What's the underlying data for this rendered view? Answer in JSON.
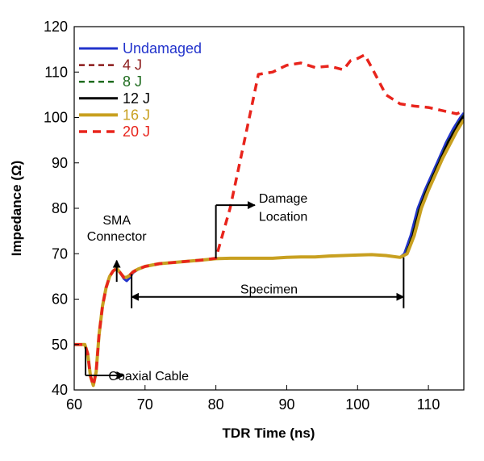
{
  "chart_data": {
    "type": "line",
    "xlabel": "TDR Time (ns)",
    "ylabel": "Impedance (Ω)",
    "xlim": [
      60,
      115
    ],
    "ylim": [
      40,
      120
    ],
    "xticks": [
      60,
      70,
      80,
      90,
      100,
      110
    ],
    "yticks": [
      40,
      50,
      60,
      70,
      80,
      90,
      100,
      110,
      120
    ],
    "grid": false,
    "legend_position": "top-left",
    "series": [
      {
        "name": "Undamaged",
        "color": "#2233cc",
        "dash": "solid",
        "width": 3,
        "points": [
          [
            60,
            50
          ],
          [
            61.5,
            50
          ],
          [
            61.9,
            48
          ],
          [
            62.3,
            43
          ],
          [
            62.7,
            41
          ],
          [
            63.1,
            44
          ],
          [
            63.5,
            52
          ],
          [
            64,
            58.5
          ],
          [
            64.5,
            62.5
          ],
          [
            65,
            65
          ],
          [
            65.5,
            66.2
          ],
          [
            66,
            66.8
          ],
          [
            66.4,
            66
          ],
          [
            67,
            64.5
          ],
          [
            67.4,
            64
          ],
          [
            67.8,
            64.6
          ],
          [
            68.3,
            65.8
          ],
          [
            69,
            66.5
          ],
          [
            70,
            67.2
          ],
          [
            72,
            67.8
          ],
          [
            75,
            68.2
          ],
          [
            78,
            68.6
          ],
          [
            80,
            68.9
          ],
          [
            82,
            69
          ],
          [
            84,
            69
          ],
          [
            86,
            69
          ],
          [
            88,
            69
          ],
          [
            90,
            69.2
          ],
          [
            92,
            69.3
          ],
          [
            94,
            69.3
          ],
          [
            96,
            69.5
          ],
          [
            98,
            69.6
          ],
          [
            100,
            69.7
          ],
          [
            102,
            69.8
          ],
          [
            104,
            69.6
          ],
          [
            106,
            69.2
          ],
          [
            106.6,
            70
          ],
          [
            107.5,
            74
          ],
          [
            108.5,
            80
          ],
          [
            109.5,
            84
          ],
          [
            110.5,
            87.5
          ],
          [
            111.5,
            91
          ],
          [
            112.5,
            94.5
          ],
          [
            113.5,
            97.5
          ],
          [
            114.5,
            100
          ],
          [
            115,
            101
          ]
        ]
      },
      {
        "name": "4 J",
        "color": "#8b1a1a",
        "dash": "7,5",
        "width": 2.5,
        "points": [
          [
            60,
            50
          ],
          [
            61.5,
            50
          ],
          [
            61.9,
            48
          ],
          [
            62.3,
            43
          ],
          [
            62.7,
            41
          ],
          [
            63.1,
            44
          ],
          [
            63.5,
            52
          ],
          [
            64,
            58.5
          ],
          [
            64.5,
            62.5
          ],
          [
            65,
            65
          ],
          [
            65.5,
            66.2
          ],
          [
            66,
            66.8
          ],
          [
            66.4,
            66
          ],
          [
            67,
            64.8
          ],
          [
            67.4,
            64.8
          ],
          [
            67.8,
            65.2
          ],
          [
            68.3,
            66
          ],
          [
            69,
            66.6
          ],
          [
            70,
            67.2
          ],
          [
            72,
            67.8
          ],
          [
            75,
            68.2
          ],
          [
            78,
            68.6
          ],
          [
            80,
            68.9
          ],
          [
            82,
            69
          ],
          [
            84,
            69
          ],
          [
            86,
            69
          ],
          [
            88,
            69
          ],
          [
            90,
            69.2
          ],
          [
            92,
            69.3
          ],
          [
            94,
            69.3
          ],
          [
            96,
            69.5
          ],
          [
            98,
            69.6
          ],
          [
            100,
            69.7
          ],
          [
            102,
            69.8
          ],
          [
            104,
            69.6
          ],
          [
            106,
            69.2
          ],
          [
            106.8,
            70
          ],
          [
            107.7,
            74
          ],
          [
            108.7,
            80
          ],
          [
            109.7,
            84
          ],
          [
            110.7,
            87.5
          ],
          [
            111.7,
            91
          ],
          [
            112.7,
            94.5
          ],
          [
            113.7,
            97.3
          ],
          [
            114.5,
            99.5
          ],
          [
            115,
            100.5
          ]
        ]
      },
      {
        "name": "8 J",
        "color": "#1e6b1e",
        "dash": "7,5",
        "width": 2.5,
        "points": [
          [
            60,
            50
          ],
          [
            61.5,
            50
          ],
          [
            61.9,
            48
          ],
          [
            62.3,
            43
          ],
          [
            62.7,
            41
          ],
          [
            63.1,
            44
          ],
          [
            63.5,
            52
          ],
          [
            64,
            58.5
          ],
          [
            64.5,
            62.5
          ],
          [
            65,
            65
          ],
          [
            65.5,
            66.2
          ],
          [
            66,
            66.8
          ],
          [
            66.4,
            66
          ],
          [
            67,
            64.8
          ],
          [
            67.4,
            64.8
          ],
          [
            67.8,
            65.2
          ],
          [
            68.3,
            66
          ],
          [
            69,
            66.6
          ],
          [
            70,
            67.2
          ],
          [
            72,
            67.8
          ],
          [
            75,
            68.2
          ],
          [
            78,
            68.6
          ],
          [
            80,
            68.9
          ],
          [
            82,
            69
          ],
          [
            84,
            69
          ],
          [
            86,
            69
          ],
          [
            88,
            69
          ],
          [
            90,
            69.2
          ],
          [
            92,
            69.3
          ],
          [
            94,
            69.3
          ],
          [
            96,
            69.5
          ],
          [
            98,
            69.6
          ],
          [
            100,
            69.7
          ],
          [
            102,
            69.8
          ],
          [
            104,
            69.6
          ],
          [
            106,
            69.2
          ],
          [
            106.8,
            70
          ],
          [
            107.7,
            74
          ],
          [
            108.7,
            80
          ],
          [
            109.7,
            84
          ],
          [
            110.7,
            87.5
          ],
          [
            111.7,
            91
          ],
          [
            112.7,
            94.5
          ],
          [
            113.7,
            97.3
          ],
          [
            114.5,
            99.5
          ],
          [
            115,
            100.5
          ]
        ]
      },
      {
        "name": "12 J",
        "color": "#000000",
        "dash": "solid",
        "width": 3,
        "points": [
          [
            60,
            50
          ],
          [
            61.5,
            50
          ],
          [
            61.9,
            48
          ],
          [
            62.3,
            43
          ],
          [
            62.7,
            41
          ],
          [
            63.1,
            44
          ],
          [
            63.5,
            52
          ],
          [
            64,
            58.5
          ],
          [
            64.5,
            62.5
          ],
          [
            65,
            65
          ],
          [
            65.5,
            66.2
          ],
          [
            66,
            66.8
          ],
          [
            66.4,
            66
          ],
          [
            67,
            64.8
          ],
          [
            67.4,
            64.8
          ],
          [
            67.8,
            65.2
          ],
          [
            68.3,
            66
          ],
          [
            69,
            66.6
          ],
          [
            70,
            67.2
          ],
          [
            72,
            67.8
          ],
          [
            75,
            68.2
          ],
          [
            78,
            68.6
          ],
          [
            80,
            68.9
          ],
          [
            82,
            69
          ],
          [
            84,
            69
          ],
          [
            86,
            69
          ],
          [
            88,
            69
          ],
          [
            90,
            69.2
          ],
          [
            92,
            69.3
          ],
          [
            94,
            69.3
          ],
          [
            96,
            69.5
          ],
          [
            98,
            69.6
          ],
          [
            100,
            69.7
          ],
          [
            102,
            69.8
          ],
          [
            104,
            69.6
          ],
          [
            106,
            69.2
          ],
          [
            106.9,
            70
          ],
          [
            107.8,
            74
          ],
          [
            108.8,
            80
          ],
          [
            109.8,
            84
          ],
          [
            110.8,
            87.5
          ],
          [
            111.8,
            91
          ],
          [
            112.8,
            94.5
          ],
          [
            113.8,
            97.3
          ],
          [
            114.6,
            99.5
          ],
          [
            115,
            100.3
          ]
        ]
      },
      {
        "name": "16 J",
        "color": "#c8a020",
        "dash": "solid",
        "width": 4,
        "points": [
          [
            60,
            50
          ],
          [
            61.5,
            50
          ],
          [
            61.9,
            48
          ],
          [
            62.3,
            43
          ],
          [
            62.7,
            41
          ],
          [
            63.1,
            44
          ],
          [
            63.5,
            52
          ],
          [
            64,
            58.5
          ],
          [
            64.5,
            62.5
          ],
          [
            65,
            65
          ],
          [
            65.5,
            66.2
          ],
          [
            66,
            66.8
          ],
          [
            66.4,
            66
          ],
          [
            67,
            64.8
          ],
          [
            67.4,
            64.8
          ],
          [
            67.8,
            65.2
          ],
          [
            68.3,
            66
          ],
          [
            69,
            66.6
          ],
          [
            70,
            67.2
          ],
          [
            72,
            67.8
          ],
          [
            75,
            68.2
          ],
          [
            78,
            68.6
          ],
          [
            80,
            68.9
          ],
          [
            82,
            69
          ],
          [
            84,
            69
          ],
          [
            86,
            69
          ],
          [
            88,
            69
          ],
          [
            90,
            69.2
          ],
          [
            92,
            69.3
          ],
          [
            94,
            69.3
          ],
          [
            96,
            69.5
          ],
          [
            98,
            69.6
          ],
          [
            100,
            69.7
          ],
          [
            102,
            69.8
          ],
          [
            104,
            69.6
          ],
          [
            106,
            69.2
          ],
          [
            107,
            70
          ],
          [
            108,
            74
          ],
          [
            109,
            80
          ],
          [
            110,
            84
          ],
          [
            111,
            87.5
          ],
          [
            112,
            91
          ],
          [
            113,
            94
          ],
          [
            114,
            97
          ],
          [
            114.7,
            98.8
          ],
          [
            115,
            99.5
          ]
        ]
      },
      {
        "name": "20 J",
        "color": "#e8241c",
        "dash": "10,7",
        "width": 3.5,
        "points": [
          [
            60,
            50
          ],
          [
            61.5,
            50
          ],
          [
            61.9,
            48
          ],
          [
            62.3,
            43
          ],
          [
            62.7,
            41
          ],
          [
            63.1,
            44
          ],
          [
            63.5,
            52
          ],
          [
            64,
            58.5
          ],
          [
            64.5,
            62.5
          ],
          [
            65,
            65
          ],
          [
            65.5,
            66.2
          ],
          [
            66,
            66.8
          ],
          [
            66.4,
            66
          ],
          [
            67,
            64.8
          ],
          [
            67.4,
            64.8
          ],
          [
            67.8,
            65.2
          ],
          [
            68.3,
            66
          ],
          [
            69,
            66.6
          ],
          [
            70,
            67.2
          ],
          [
            72,
            67.8
          ],
          [
            75,
            68.2
          ],
          [
            78,
            68.6
          ],
          [
            80,
            69
          ],
          [
            82,
            80
          ],
          [
            83.5,
            91
          ],
          [
            85,
            102
          ],
          [
            86,
            109.5
          ],
          [
            88,
            110
          ],
          [
            90,
            111.5
          ],
          [
            92,
            112
          ],
          [
            94,
            111
          ],
          [
            96,
            111.3
          ],
          [
            98,
            110.5
          ],
          [
            99,
            112.5
          ],
          [
            100,
            113
          ],
          [
            101,
            113.8
          ],
          [
            102,
            111
          ],
          [
            103,
            108
          ],
          [
            104,
            105
          ],
          [
            106,
            103
          ],
          [
            108,
            102.5
          ],
          [
            110,
            102.2
          ],
          [
            112,
            101.5
          ],
          [
            114,
            100.8
          ],
          [
            115,
            101.5
          ]
        ]
      }
    ],
    "annotations": [
      {
        "text": "SMA",
        "x": 66,
        "y": 77.5
      },
      {
        "text": "Connector",
        "x": 66,
        "y": 74
      },
      {
        "text": "Damage",
        "x": 89.5,
        "y": 82.3
      },
      {
        "text": "Location",
        "x": 89.5,
        "y": 78.3
      },
      {
        "text": "Specimen",
        "x": 87.5,
        "y": 62.3
      },
      {
        "text": "Coaxial Cable",
        "x": 70.5,
        "y": 43.2
      }
    ]
  }
}
